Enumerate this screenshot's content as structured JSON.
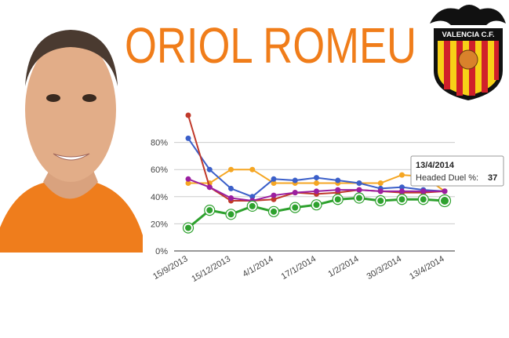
{
  "header": {
    "title": "ORIOL ROMEU",
    "crest_text": "VALENCIA C.F."
  },
  "chart_data": {
    "type": "line",
    "categories": [
      "15/9/2013",
      null,
      "15/12/2013",
      null,
      "4/1/2014",
      null,
      "17/1/2014",
      null,
      "1/2/2014",
      null,
      "30/3/2014",
      null,
      "13/4/2014"
    ],
    "ylim": [
      0,
      100
    ],
    "yticks": [
      {
        "value": 0,
        "label": "0%"
      },
      {
        "value": 20,
        "label": "20%"
      },
      {
        "value": 40,
        "label": "40%"
      },
      {
        "value": 60,
        "label": "60%"
      },
      {
        "value": 80,
        "label": "80%"
      }
    ],
    "grid": true,
    "series": [
      {
        "color": "#f5a623",
        "values": [
          50,
          50,
          60,
          60,
          50,
          50,
          50,
          50,
          50,
          50,
          56,
          55,
          44
        ]
      },
      {
        "color": "#3b5fc9",
        "values": [
          83,
          60,
          46,
          40,
          53,
          52,
          54,
          52,
          50,
          46,
          47,
          45,
          44
        ]
      },
      {
        "color": "#c0392b",
        "values": [
          100,
          47,
          37,
          37,
          38,
          43,
          42,
          43,
          45,
          44,
          43,
          43,
          44
        ]
      },
      {
        "color": "#9b1fa0",
        "values": [
          53,
          47,
          39,
          37,
          41,
          43,
          44,
          45,
          45,
          44,
          44,
          44,
          44
        ]
      },
      {
        "name": "Headed Duel %",
        "color": "#2ea12e",
        "values": [
          17,
          30,
          27,
          33,
          29,
          32,
          34,
          38,
          39,
          37,
          38,
          38,
          37
        ]
      }
    ],
    "tooltip": {
      "title": "13/4/2014",
      "label": "Headed Duel %:",
      "value": 37
    }
  }
}
